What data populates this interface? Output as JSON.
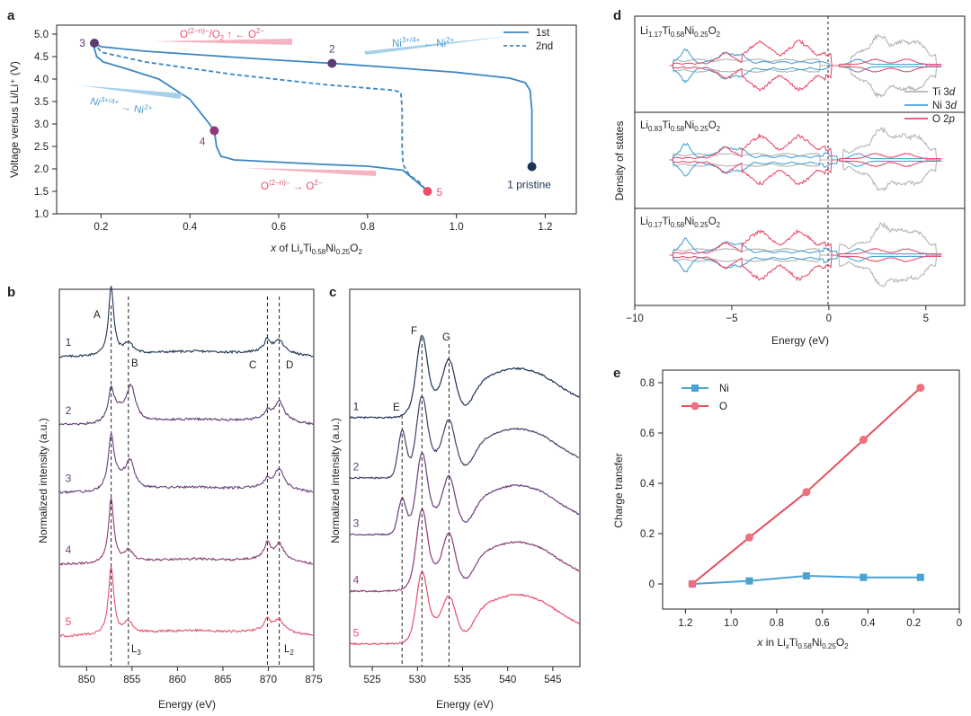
{
  "colors": {
    "navy": "#1e3354",
    "blue": "#3c86c2",
    "lightblue": "#5aaad8",
    "purple": "#5c3a6e",
    "mag": "#8c3c78",
    "pink": "#e8506e",
    "lightpink": "#ee8aa0",
    "grey": "#b4b4b4",
    "ni": "#4aa3d4",
    "o": "#e4505e"
  },
  "panel_labels": {
    "a": "a",
    "b": "b",
    "c": "c",
    "d": "d",
    "e": "e"
  },
  "chart_data": [
    {
      "id": "a",
      "type": "line",
      "xlabel": "x of LixTi0.58Ni0.25O2",
      "xlabel_parts": {
        "x": "x",
        "of": " of Li",
        "sub_x": "x",
        "ti": "Ti",
        "s1": "0.58",
        "ni": "Ni",
        "s2": "0.25",
        "o": "O",
        "s3": "2"
      },
      "ylabel": "Voltage versus Li/Li⁺ (V)",
      "xlim": [
        0.1,
        1.27
      ],
      "ylim": [
        1.0,
        5.2
      ],
      "xticks": [
        "0.2",
        "0.4",
        "0.6",
        "0.8",
        "1.0",
        "1.2"
      ],
      "yticks": [
        "1.0",
        "1.5",
        "2.0",
        "2.5",
        "3.0",
        "3.5",
        "4.0",
        "4.5",
        "5.0"
      ],
      "legend": [
        "1st",
        "2nd"
      ],
      "series": [
        {
          "name": "1st",
          "style": "solid",
          "points": [
            [
              1.17,
              2.05
            ],
            [
              1.17,
              3.3
            ],
            [
              1.166,
              3.75
            ],
            [
              1.155,
              3.92
            ],
            [
              1.12,
              4.02
            ],
            [
              1.0,
              4.15
            ],
            [
              0.85,
              4.26
            ],
            [
              0.72,
              4.35
            ],
            [
              0.6,
              4.42
            ],
            [
              0.45,
              4.52
            ],
            [
              0.3,
              4.62
            ],
            [
              0.2,
              4.72
            ],
            [
              0.185,
              4.8
            ],
            [
              0.183,
              4.75
            ],
            [
              0.19,
              4.5
            ],
            [
              0.205,
              4.38
            ],
            [
              0.26,
              4.22
            ],
            [
              0.33,
              4.0
            ],
            [
              0.4,
              3.55
            ],
            [
              0.44,
              3.05
            ],
            [
              0.455,
              2.85
            ],
            [
              0.46,
              2.5
            ],
            [
              0.47,
              2.28
            ],
            [
              0.5,
              2.2
            ],
            [
              0.6,
              2.15
            ],
            [
              0.7,
              2.1
            ],
            [
              0.8,
              2.06
            ],
            [
              0.88,
              1.97
            ],
            [
              0.91,
              1.72
            ],
            [
              0.93,
              1.55
            ]
          ]
        },
        {
          "name": "2nd",
          "style": "dashed",
          "points": [
            [
              0.93,
              1.55
            ],
            [
              0.915,
              1.72
            ],
            [
              0.895,
              1.85
            ],
            [
              0.88,
              2.1
            ],
            [
              0.878,
              2.5
            ],
            [
              0.878,
              3.3
            ],
            [
              0.875,
              3.7
            ],
            [
              0.86,
              3.75
            ],
            [
              0.7,
              3.88
            ],
            [
              0.5,
              4.1
            ],
            [
              0.3,
              4.38
            ],
            [
              0.2,
              4.6
            ],
            [
              0.185,
              4.8
            ]
          ]
        }
      ],
      "markers": [
        {
          "label": "1 pristine",
          "x": 1.17,
          "y": 2.05,
          "color": "navy"
        },
        {
          "label": "2",
          "x": 0.72,
          "y": 4.35,
          "color": "purple"
        },
        {
          "label": "3",
          "x": 0.185,
          "y": 4.8,
          "color": "purple"
        },
        {
          "label": "4",
          "x": 0.455,
          "y": 2.85,
          "color": "mag"
        },
        {
          "label": "5",
          "x": 0.935,
          "y": 1.5,
          "color": "pink"
        }
      ],
      "annotations": {
        "o_release": {
          "a": "O",
          "sup": "(2−n)−",
          "b": "/O",
          "sub": "2",
          "c": " ↑ ← O",
          "sup2": "2−"
        },
        "ni_ox": {
          "a": "Ni",
          "sup": "3+/4+",
          "b": " ← Ni",
          "sup2": "2+"
        },
        "ni_red": {
          "a": "Ni",
          "sup": "3+/4+",
          "b": " → Ni",
          "sup2": "2+"
        },
        "o_red": {
          "a": "O",
          "sup": "(2−n)−",
          "b": " → O",
          "sup2": "2−"
        }
      }
    },
    {
      "id": "b",
      "type": "line",
      "xlabel": "Energy (eV)",
      "ylabel": "Normalized intensity (a.u.)",
      "xlim": [
        847,
        875
      ],
      "xticks": [
        "850",
        "855",
        "860",
        "865",
        "870",
        "875"
      ],
      "series_labels": [
        "1",
        "2",
        "3",
        "4",
        "5"
      ],
      "series": [
        {
          "name": "1",
          "offset": 0.82,
          "pA": 0.18,
          "pB": 0.03,
          "pC": 0.03,
          "pD": 0.03,
          "base": 0.0,
          "shiftB": 0.0
        },
        {
          "name": "2",
          "offset": 0.64,
          "pA": 0.07,
          "pB": 0.09,
          "pC": 0.02,
          "pD": 0.05,
          "base": 0.0,
          "shiftB": 0.3
        },
        {
          "name": "3",
          "offset": 0.46,
          "pA": 0.13,
          "pB": 0.07,
          "pC": 0.02,
          "pD": 0.05,
          "base": 0.0,
          "shiftB": 0.2
        },
        {
          "name": "4",
          "offset": 0.27,
          "pA": 0.17,
          "pB": 0.03,
          "pC": 0.04,
          "pD": 0.04,
          "base": 0.0,
          "shiftB": 0.0
        },
        {
          "name": "5",
          "offset": 0.08,
          "pA": 0.18,
          "pB": 0.03,
          "pC": 0.03,
          "pD": 0.03,
          "base": 0.0,
          "shiftB": 0.0
        }
      ],
      "peaks": {
        "A": 852.7,
        "B": 854.6,
        "C": 869.9,
        "D": 871.2
      },
      "edge_labels": {
        "L3": {
          "a": "L",
          "sub": "3"
        },
        "L2": {
          "a": "L",
          "sub": "2"
        }
      }
    },
    {
      "id": "c",
      "type": "line",
      "xlabel": "Energy (eV)",
      "ylabel": "Normalized intensity (a.u.)",
      "xlim": [
        522.5,
        548
      ],
      "xticks": [
        "525",
        "530",
        "535",
        "540",
        "545"
      ],
      "series_labels": [
        "1",
        "2",
        "3",
        "4",
        "5"
      ],
      "series": [
        {
          "name": "1",
          "offset": 0.66,
          "pE": 0.0
        },
        {
          "name": "2",
          "offset": 0.5,
          "pE": 0.12
        },
        {
          "name": "3",
          "offset": 0.35,
          "pE": 0.09
        },
        {
          "name": "4",
          "offset": 0.2,
          "pE": 0.0
        },
        {
          "name": "5",
          "offset": 0.06,
          "pE": 0.0
        }
      ],
      "peaks": {
        "E": 528.3,
        "F": 530.5,
        "G": 533.5
      }
    },
    {
      "id": "d",
      "type": "line",
      "xlabel": "Energy (eV)",
      "ylabel": "Density of states",
      "xlim": [
        -10,
        7
      ],
      "xticks": [
        "−10",
        "−5",
        "0",
        "5"
      ],
      "legend": [
        {
          "a": "Ti 3",
          "b": "d"
        },
        {
          "a": "Ni 3",
          "b": "d"
        },
        {
          "a": "O 2",
          "b": "p"
        }
      ],
      "subpanels": [
        {
          "a": "Li",
          "s1": "1.17",
          "b": "Ti",
          "s2": "0.58",
          "c": "Ni",
          "s3": "0.25",
          "d": "O",
          "s4": "2",
          "gap": 0.6,
          "ti_shift": 0.0
        },
        {
          "a": "Li",
          "s1": "0.83",
          "b": "Ti",
          "s2": "0.58",
          "c": "Ni",
          "s3": "0.25",
          "d": "O",
          "s4": "2",
          "gap": 0.2,
          "ti_shift": 0.1
        },
        {
          "a": "Li",
          "s1": "0.17",
          "b": "Ti",
          "s2": "0.58",
          "c": "Ni",
          "s3": "0.25",
          "d": "O",
          "s4": "2",
          "gap": 0.0,
          "ti_shift": 0.2
        }
      ]
    },
    {
      "id": "e",
      "type": "line",
      "xlabel_parts": {
        "x": "x",
        "b": " in Li",
        "sub_x": "x",
        "ti": "Ti",
        "s1": "0.58",
        "ni": "Ni",
        "s2": "0.25",
        "o": "O",
        "s3": "2"
      },
      "ylabel": "Charge transfer",
      "xlim": [
        1.3,
        0.0
      ],
      "ylim": [
        -0.1,
        0.85
      ],
      "xticks": [
        "1.2",
        "1.0",
        "0.8",
        "0.6",
        "0.4",
        "0.2",
        "0"
      ],
      "yticks": [
        "0",
        "0.2",
        "0.4",
        "0.6",
        "0.8"
      ],
      "legend": [
        "Ni",
        "O"
      ],
      "series": [
        {
          "name": "Ni",
          "x": [
            1.17,
            0.92,
            0.67,
            0.42,
            0.17
          ],
          "y": [
            0.0,
            0.012,
            0.032,
            0.026,
            0.026
          ]
        },
        {
          "name": "O",
          "x": [
            1.17,
            0.92,
            0.67,
            0.42,
            0.17
          ],
          "y": [
            0.0,
            0.185,
            0.365,
            0.573,
            0.78
          ]
        }
      ]
    }
  ]
}
